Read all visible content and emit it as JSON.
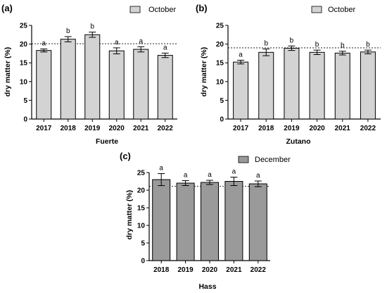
{
  "chart_data": [
    {
      "id": "a",
      "type": "bar",
      "panel_label": "(a)",
      "xlabel": "Fuerte",
      "ylabel": "dry matter (%)",
      "categories": [
        "2017",
        "2018",
        "2019",
        "2020",
        "2021",
        "2022"
      ],
      "series": [
        {
          "name": "October",
          "color": "#d3d3d3",
          "values": [
            18.3,
            21.3,
            22.5,
            18.2,
            18.6,
            17.0
          ],
          "errors": [
            0.4,
            0.7,
            0.7,
            0.8,
            0.7,
            0.6
          ]
        }
      ],
      "significance_letters": [
        "a",
        "b",
        "b",
        "a",
        "a",
        "a"
      ],
      "reference_line": 20.1,
      "ylim": [
        0,
        25
      ],
      "yticks": [
        0,
        5,
        10,
        15,
        20,
        25
      ],
      "ytick_labels": [
        "0",
        "5",
        "10",
        "15",
        "20",
        "25"
      ],
      "grid": false,
      "legend_position": "top-right"
    },
    {
      "id": "b",
      "type": "bar",
      "panel_label": "(b)",
      "xlabel": "Zutano",
      "ylabel": "dry matter (%)",
      "categories": [
        "2017",
        "2018",
        "2019",
        "2020",
        "2021",
        "2022"
      ],
      "series": [
        {
          "name": "October",
          "color": "#d3d3d3",
          "values": [
            15.2,
            17.8,
            18.9,
            17.8,
            17.6,
            17.9
          ],
          "errors": [
            0.5,
            0.9,
            0.6,
            0.6,
            0.5,
            0.5
          ]
        }
      ],
      "significance_letters": [
        "a",
        "b",
        "b",
        "b",
        "b",
        "b"
      ],
      "reference_line": 19.0,
      "ylim": [
        0,
        25
      ],
      "yticks": [
        0,
        5,
        10,
        15,
        20,
        25
      ],
      "ytick_labels": [
        "0",
        "5",
        "10",
        "15",
        "20",
        "25"
      ],
      "grid": false,
      "legend_position": "top-right"
    },
    {
      "id": "c",
      "type": "bar",
      "panel_label": "(c)",
      "xlabel": "Hass",
      "ylabel": "dry matter (%)",
      "categories": [
        "2018",
        "2019",
        "2020",
        "2021",
        "2022"
      ],
      "series": [
        {
          "name": "December",
          "color": "#9a9a9a",
          "values": [
            23.0,
            22.0,
            22.2,
            22.5,
            21.8
          ],
          "errors": [
            1.7,
            0.7,
            0.6,
            1.2,
            0.8
          ]
        }
      ],
      "significance_letters": [
        "a",
        "a",
        "a",
        "a",
        "a"
      ],
      "reference_line": 21.1,
      "ylim": [
        0,
        25
      ],
      "yticks": [
        0,
        5,
        10,
        15,
        20,
        25
      ],
      "ytick_labels": [
        "0",
        "5",
        "10",
        "15",
        "20",
        "25"
      ],
      "grid": false,
      "legend_position": "top-right"
    }
  ]
}
